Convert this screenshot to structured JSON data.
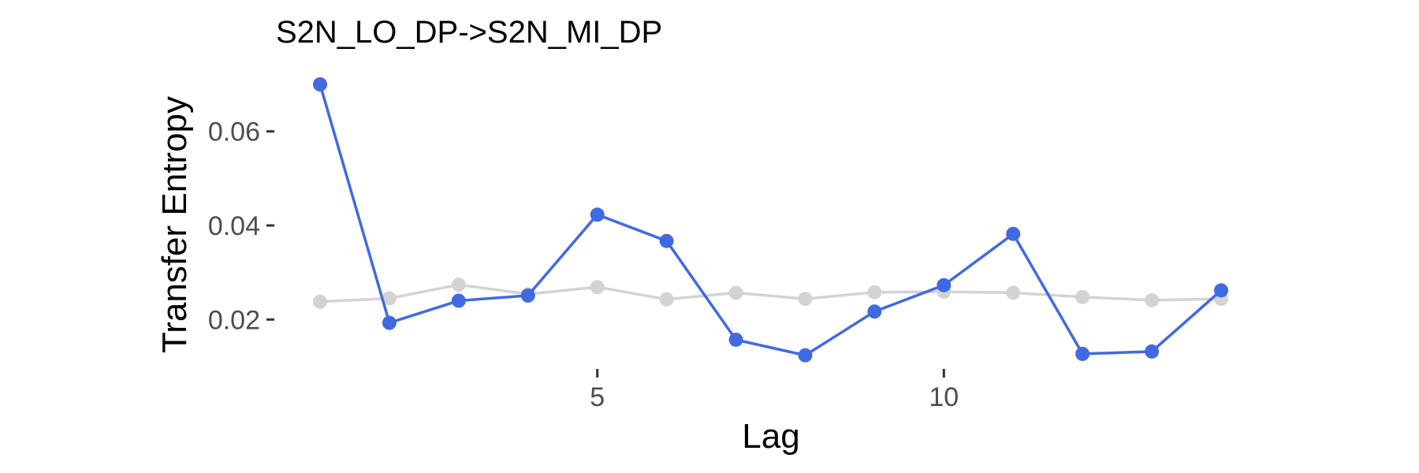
{
  "chart_data": {
    "type": "line",
    "title": "S2N_LO_DP->S2N_MI_DP",
    "xlabel": "Lag",
    "ylabel": "Transfer Entropy",
    "xlim": [
      1,
      14
    ],
    "ylim": [
      0.01,
      0.07
    ],
    "xticks": [
      5,
      10
    ],
    "xtick_labels": [
      "5",
      "10"
    ],
    "yticks": [
      0.02,
      0.04,
      0.06
    ],
    "ytick_labels": [
      "0.02",
      "0.04",
      "0.06"
    ],
    "grid": false,
    "legend": "none",
    "x": [
      1,
      2,
      3,
      4,
      5,
      6,
      7,
      8,
      9,
      10,
      11,
      12,
      13,
      14
    ],
    "series": [
      {
        "color": "#d3d3d3",
        "values": [
          0.0238,
          0.0245,
          0.0274,
          0.0254,
          0.0269,
          0.0243,
          0.0257,
          0.0244,
          0.0258,
          0.0259,
          0.0257,
          0.0248,
          0.0241,
          0.0244
        ]
      },
      {
        "color": "#4169e1",
        "values": [
          0.07,
          0.0193,
          0.024,
          0.0251,
          0.0423,
          0.0367,
          0.0157,
          0.0124,
          0.0217,
          0.0273,
          0.0382,
          0.0127,
          0.0132,
          0.0262
        ]
      }
    ]
  }
}
